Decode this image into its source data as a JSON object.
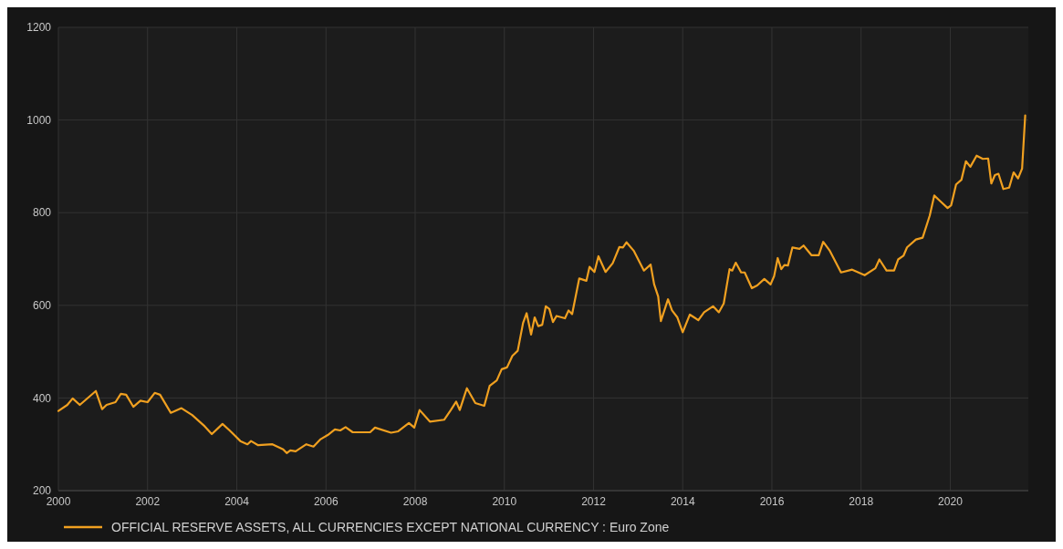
{
  "chart_data": {
    "type": "line",
    "xlim": [
      2000,
      2021.75
    ],
    "xticks": [
      2000,
      2002,
      2004,
      2006,
      2008,
      2010,
      2012,
      2014,
      2016,
      2018,
      2020
    ],
    "ylim": [
      200,
      1200
    ],
    "yticks": [
      200,
      400,
      600,
      800,
      1000,
      1200
    ],
    "grid": true,
    "legend": "bottom",
    "line_style": "solid",
    "marker": "none",
    "series": [
      {
        "name": "OFFICIAL RESERVE ASSETS, ALL CURRENCIES EXCEPT NATIONAL CURRENCY : Euro Zone",
        "color": "#f0a020",
        "x": [
          2000.0,
          2000.2,
          2000.32,
          2000.48,
          2000.84,
          2000.98,
          2001.08,
          2001.28,
          2001.4,
          2001.52,
          2001.68,
          2001.84,
          2002.0,
          2002.16,
          2002.28,
          2002.52,
          2002.76,
          2003.0,
          2003.28,
          2003.44,
          2003.68,
          2003.84,
          2004.08,
          2004.24,
          2004.32,
          2004.48,
          2004.8,
          2005.04,
          2005.12,
          2005.2,
          2005.32,
          2005.56,
          2005.72,
          2005.88,
          2006.04,
          2006.2,
          2006.32,
          2006.44,
          2006.6,
          2006.99,
          2007.1,
          2007.46,
          2007.62,
          2007.86,
          2007.98,
          2008.1,
          2008.33,
          2008.65,
          2008.8,
          2008.92,
          2009.0,
          2009.16,
          2009.35,
          2009.55,
          2009.67,
          2009.83,
          2009.94,
          2010.06,
          2010.18,
          2010.3,
          2010.42,
          2010.5,
          2010.6,
          2010.68,
          2010.76,
          2010.85,
          2010.93,
          2011.01,
          2011.09,
          2011.17,
          2011.36,
          2011.44,
          2011.52,
          2011.68,
          2011.84,
          2011.91,
          2012.02,
          2012.11,
          2012.27,
          2012.43,
          2012.58,
          2012.66,
          2012.74,
          2012.9,
          2013.13,
          2013.28,
          2013.36,
          2013.45,
          2013.51,
          2013.67,
          2013.76,
          2013.88,
          2014.0,
          2014.16,
          2014.35,
          2014.48,
          2014.68,
          2014.81,
          2014.92,
          2015.05,
          2015.11,
          2015.19,
          2015.31,
          2015.39,
          2015.55,
          2015.67,
          2015.83,
          2015.97,
          2016.05,
          2016.13,
          2016.21,
          2016.28,
          2016.36,
          2016.46,
          2016.62,
          2016.71,
          2016.89,
          2017.05,
          2017.15,
          2017.29,
          2017.55,
          2017.8,
          2018.08,
          2018.32,
          2018.41,
          2018.57,
          2018.74,
          2018.83,
          2018.95,
          2019.03,
          2019.23,
          2019.38,
          2019.54,
          2019.64,
          2019.74,
          2019.94,
          2020.02,
          2020.13,
          2020.25,
          2020.35,
          2020.45,
          2020.59,
          2020.73,
          2020.85,
          2020.92,
          2021.0,
          2021.08,
          2021.19,
          2021.32,
          2021.42,
          2021.52,
          2021.61,
          2021.68
        ],
        "values": [
          372,
          385,
          399,
          385,
          415,
          376,
          385,
          391,
          409,
          407,
          381,
          394,
          391,
          411,
          407,
          368,
          378,
          363,
          339,
          322,
          344,
          330,
          307,
          300,
          307,
          298,
          300,
          289,
          281,
          287,
          285,
          300,
          295,
          311,
          320,
          332,
          330,
          337,
          326,
          326,
          336,
          325,
          328,
          346,
          336,
          374,
          349,
          353,
          374,
          392,
          374,
          421,
          389,
          383,
          426,
          438,
          462,
          466,
          491,
          502,
          562,
          583,
          537,
          574,
          555,
          558,
          598,
          592,
          564,
          577,
          572,
          589,
          581,
          658,
          653,
          683,
          672,
          706,
          672,
          691,
          726,
          725,
          736,
          718,
          675,
          688,
          645,
          619,
          566,
          613,
          589,
          574,
          542,
          580,
          568,
          585,
          598,
          585,
          604,
          678,
          675,
          692,
          671,
          671,
          637,
          643,
          657,
          645,
          663,
          702,
          678,
          687,
          686,
          725,
          722,
          729,
          708,
          708,
          737,
          719,
          671,
          677,
          665,
          680,
          699,
          675,
          675,
          699,
          707,
          725,
          742,
          746,
          794,
          837,
          828,
          810,
          816,
          861,
          871,
          911,
          899,
          923,
          916,
          917,
          863,
          881,
          884,
          851,
          854,
          887,
          874,
          895,
          1010
        ]
      }
    ]
  }
}
